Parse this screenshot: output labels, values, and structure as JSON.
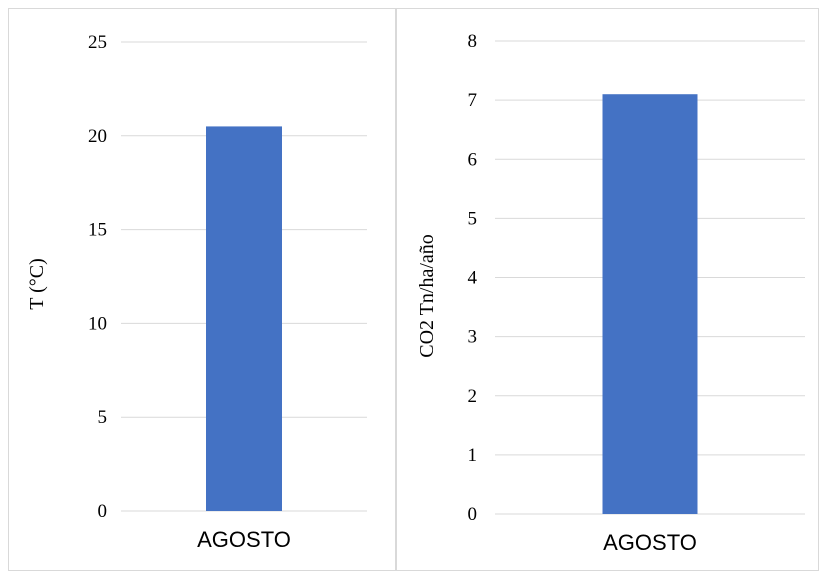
{
  "chart_data": [
    {
      "type": "bar",
      "categories": [
        "AGOSTO"
      ],
      "values": [
        20.5
      ],
      "title": "",
      "xlabel": "",
      "ylabel": "T (°C)",
      "ylim": [
        0,
        25
      ],
      "yticks": [
        0,
        5,
        10,
        15,
        20,
        25
      ],
      "grid": true,
      "color": "#4472C4"
    },
    {
      "type": "bar",
      "categories": [
        "AGOSTO"
      ],
      "values": [
        7.1
      ],
      "title": "",
      "xlabel": "",
      "ylabel": "CO2 Tn/ha/año",
      "ylim": [
        0,
        8
      ],
      "yticks": [
        0,
        1,
        2,
        3,
        4,
        5,
        6,
        7,
        8
      ],
      "grid": true,
      "color": "#4472C4"
    }
  ]
}
